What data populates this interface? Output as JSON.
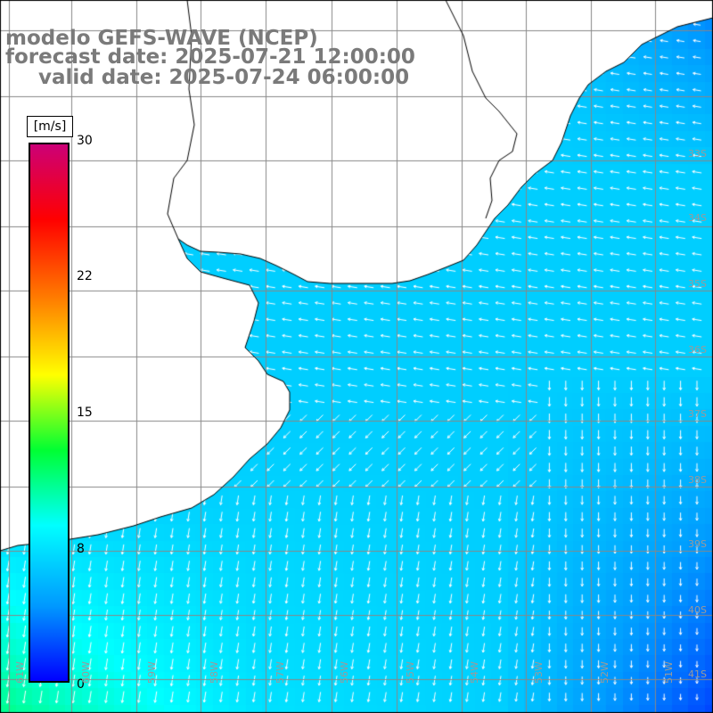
{
  "header": {
    "line1": "modelo GEFS-WAVE (NCEP)",
    "line2": "forecast date: 2025-07-21 12:00:00",
    "line3": "valid date: 2025-07-24 06:00:00"
  },
  "colorbar": {
    "unit": "[m/s]",
    "ticks": [
      "30",
      "22",
      "15",
      "8",
      "0"
    ],
    "tick_values": [
      30,
      22,
      15,
      8,
      0
    ],
    "range": [
      0,
      30
    ],
    "colors": [
      "#0000ff",
      "#0099ff",
      "#00ffff",
      "#00ff33",
      "#ffff00",
      "#ff7f00",
      "#ff0000",
      "#cc0077"
    ]
  },
  "axes": {
    "lat_labels": [
      "33S",
      "34S",
      "35S",
      "36S",
      "37S",
      "38S",
      "39S",
      "40S",
      "41S"
    ],
    "lon_labels": [
      "61W",
      "60W",
      "59W",
      "58W",
      "57W",
      "56W",
      "55W",
      "54W",
      "53W",
      "52W",
      "51W"
    ]
  },
  "map": {
    "grid": "on",
    "field": "wind speed with direction arrows"
  }
}
